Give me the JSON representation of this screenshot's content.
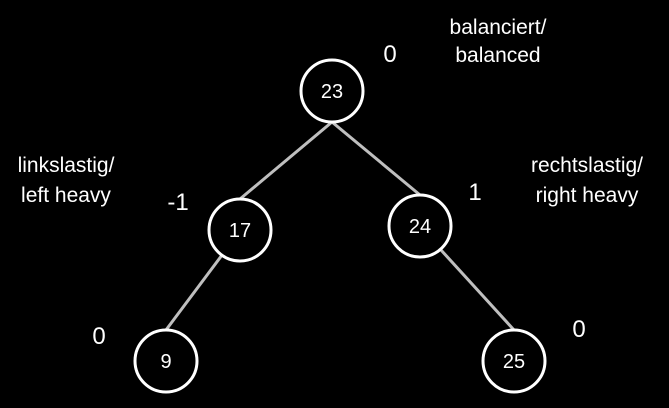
{
  "nodes": [
    {
      "id": "n23",
      "value": "23",
      "balance": "0"
    },
    {
      "id": "n17",
      "value": "17",
      "balance": "-1"
    },
    {
      "id": "n24",
      "value": "24",
      "balance": "1"
    },
    {
      "id": "n9",
      "value": "9",
      "balance": "0"
    },
    {
      "id": "n25",
      "value": "25",
      "balance": "0"
    }
  ],
  "annotations": {
    "root": {
      "line1": "balanciert/",
      "line2": "balanced"
    },
    "left": {
      "line1": "linkslastig/",
      "line2": "left heavy"
    },
    "right": {
      "line1": "rechtslastig/",
      "line2": "right heavy"
    }
  },
  "colors": {
    "background": "#000000",
    "edge": "#bfbfbf",
    "node_fill": "#000000",
    "node_stroke": "#ffffff",
    "text": "#ffffff"
  }
}
